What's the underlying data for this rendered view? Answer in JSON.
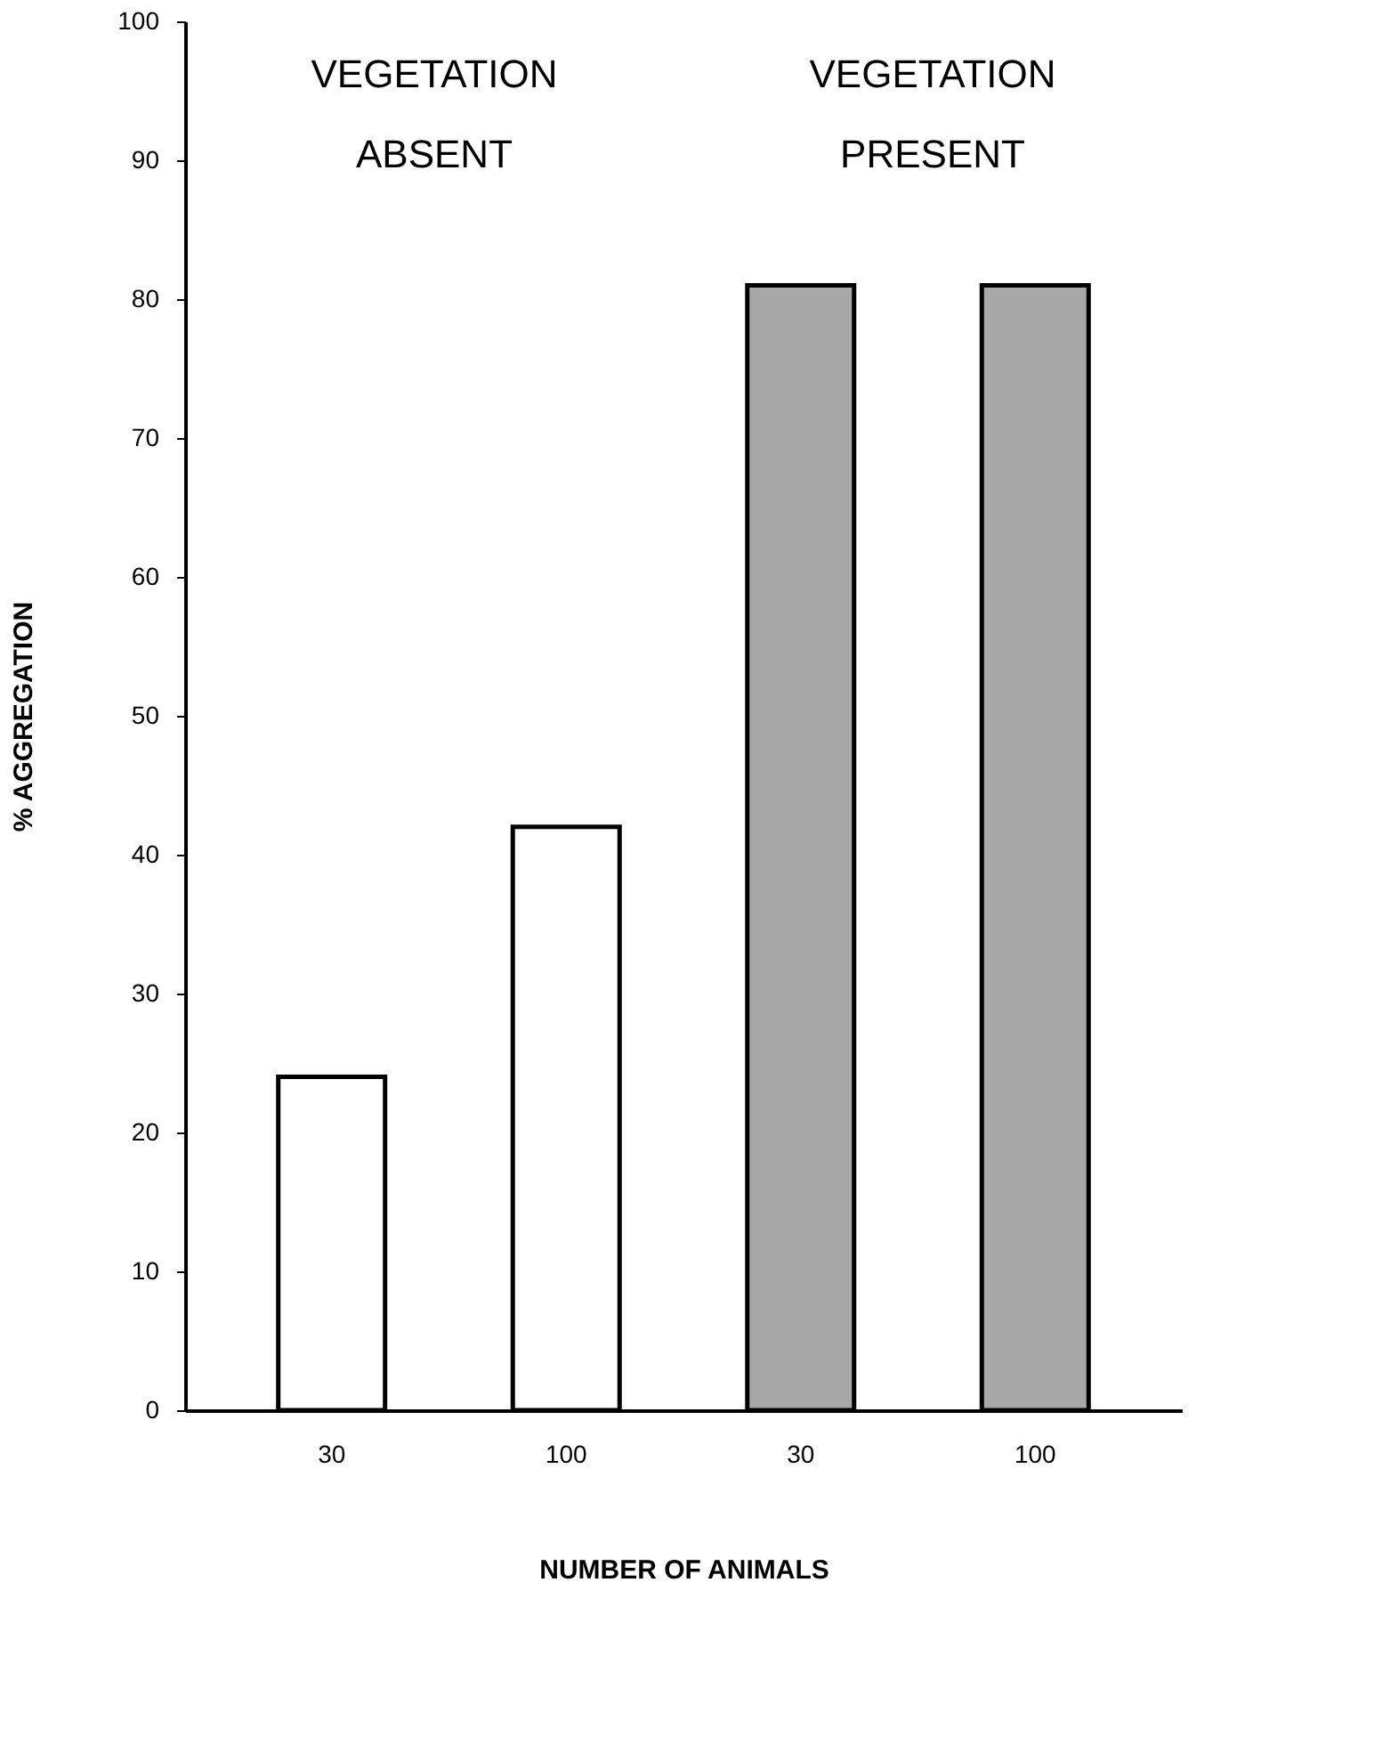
{
  "chart_data": {
    "type": "bar",
    "xlabel": "NUMBER OF ANIMALS",
    "ylabel": "% AGGREGATION",
    "categories": [
      "30",
      "100",
      "30",
      "100"
    ],
    "values": [
      24,
      42,
      81,
      81
    ],
    "colors": [
      "#ffffff",
      "#ffffff",
      "#a8a8a8",
      "#a8a8a8"
    ],
    "ylim": [
      0,
      100
    ],
    "yticks": [
      0,
      10,
      20,
      30,
      40,
      50,
      60,
      70,
      80,
      90,
      100
    ],
    "grid": false,
    "annotations": [
      "VEGETATION\nABSENT",
      "VEGETATION\nPRESENT"
    ]
  }
}
